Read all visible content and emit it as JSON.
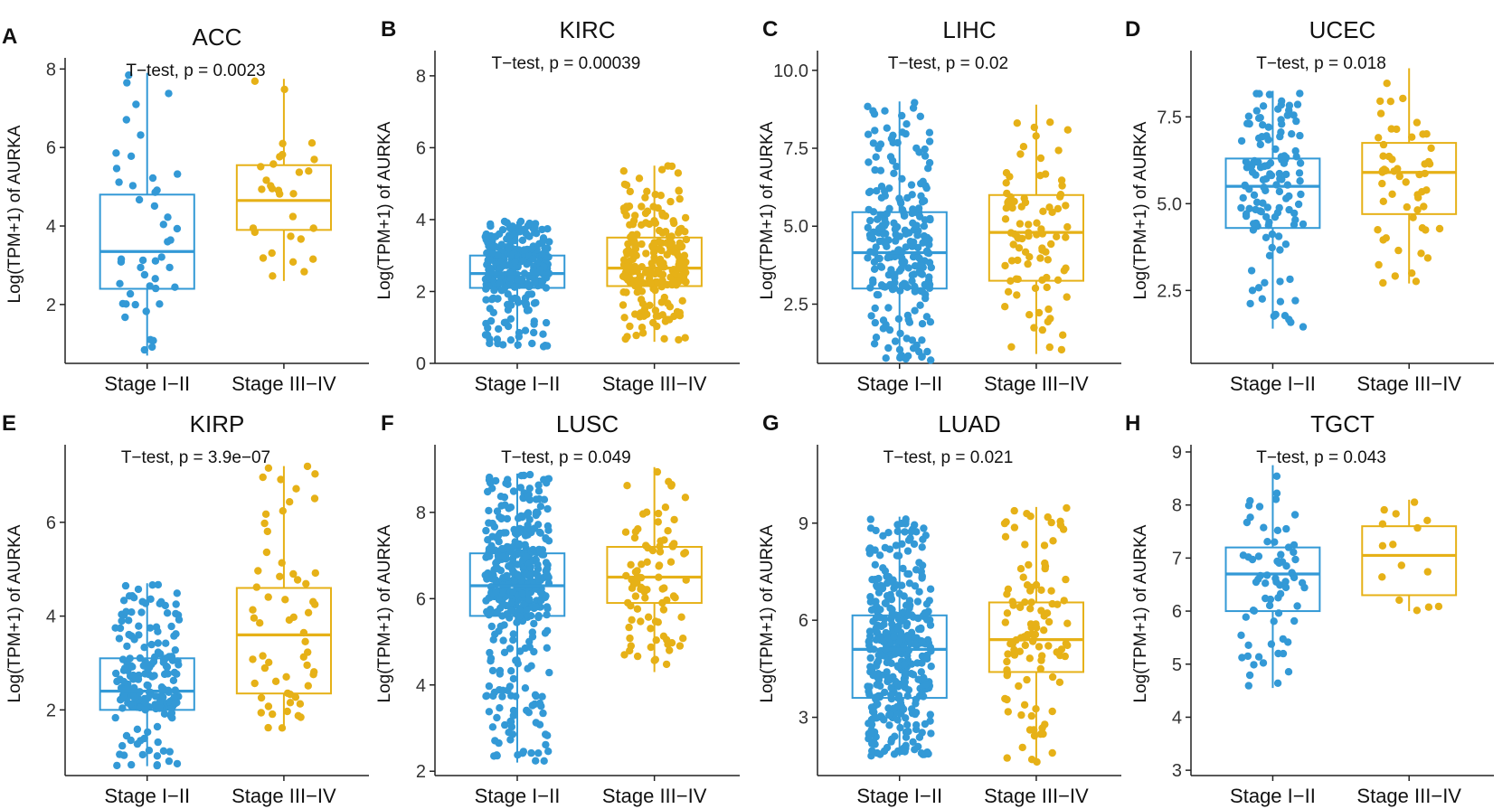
{
  "figure": {
    "colors": {
      "stage_early": "#3399d6",
      "stage_late": "#e6b117",
      "axis": "#222222",
      "text": "#111111"
    },
    "ylabel": "Log(TPM+1) of AURKA",
    "categories": [
      "Stage I−II",
      "Stage III−IV"
    ]
  },
  "chart_data": [
    {
      "type": "box",
      "panel_label": "A",
      "title": "ACC",
      "annotation": "T−test, p = 0.0023",
      "xlabel": "",
      "ylabel": "Log(TPM+1) of AURKA",
      "ylim": [
        0.5,
        8.1
      ],
      "yticks": [
        2,
        4,
        6,
        8
      ],
      "ytick_labels": [
        "2",
        "4",
        "6",
        "8"
      ],
      "categories": [
        "Stage I−II",
        "Stage III−IV"
      ],
      "boxes": [
        {
          "name": "Stage I−II",
          "whisker_low": 0.7,
          "q1": 2.4,
          "median": 3.35,
          "q3": 4.8,
          "whisker_high": 7.9,
          "n_points": 46
        },
        {
          "name": "Stage III−IV",
          "whisker_low": 2.6,
          "q1": 3.9,
          "median": 4.65,
          "q3": 5.55,
          "whisker_high": 7.75,
          "n_points": 30
        }
      ]
    },
    {
      "type": "box",
      "panel_label": "B",
      "title": "KIRC",
      "annotation": "T−test, p = 0.00039",
      "xlabel": "",
      "ylabel": "Log(TPM+1) of AURKA",
      "ylim": [
        0,
        8.5
      ],
      "yticks": [
        0,
        2,
        4,
        6,
        8
      ],
      "ytick_labels": [
        "0",
        "2",
        "4",
        "6",
        "8"
      ],
      "categories": [
        "Stage I−II",
        "Stage III−IV"
      ],
      "boxes": [
        {
          "name": "Stage I−II",
          "whisker_low": 0.4,
          "q1": 2.1,
          "median": 2.5,
          "q3": 3.0,
          "whisker_high": 3.95,
          "n_points": 300
        },
        {
          "name": "Stage III−IV",
          "whisker_low": 0.6,
          "q1": 2.15,
          "median": 2.65,
          "q3": 3.5,
          "whisker_high": 5.5,
          "n_points": 230
        }
      ]
    },
    {
      "type": "box",
      "panel_label": "C",
      "title": "LIHC",
      "annotation": "T−test, p = 0.02",
      "xlabel": "",
      "ylabel": "Log(TPM+1) of AURKA",
      "ylim": [
        0.6,
        10.4
      ],
      "yticks": [
        2.5,
        5.0,
        7.5,
        10.0
      ],
      "ytick_labels": [
        "2.5",
        "5.0",
        "7.5",
        "10.0"
      ],
      "categories": [
        "Stage I−II",
        "Stage III−IV"
      ],
      "boxes": [
        {
          "name": "Stage I−II",
          "whisker_low": 0.7,
          "q1": 3.0,
          "median": 4.15,
          "q3": 5.45,
          "whisker_high": 9.0,
          "n_points": 250
        },
        {
          "name": "Stage III−IV",
          "whisker_low": 0.9,
          "q1": 3.25,
          "median": 4.8,
          "q3": 6.0,
          "whisker_high": 8.9,
          "n_points": 90
        }
      ]
    },
    {
      "type": "box",
      "panel_label": "D",
      "title": "UCEC",
      "annotation": "T−test, p = 0.018",
      "xlabel": "",
      "ylabel": "Log(TPM+1) of AURKA",
      "ylim": [
        0.4,
        9.2
      ],
      "yticks": [
        2.5,
        5.0,
        7.5
      ],
      "ytick_labels": [
        "2.5",
        "5.0",
        "7.5"
      ],
      "categories": [
        "Stage I−II",
        "Stage III−IV"
      ],
      "boxes": [
        {
          "name": "Stage I−II",
          "whisker_low": 1.4,
          "q1": 4.3,
          "median": 5.5,
          "q3": 6.3,
          "whisker_high": 8.25,
          "n_points": 130
        },
        {
          "name": "Stage III−IV",
          "whisker_low": 2.7,
          "q1": 4.7,
          "median": 5.9,
          "q3": 6.75,
          "whisker_high": 8.9,
          "n_points": 55
        }
      ]
    },
    {
      "type": "box",
      "panel_label": "E",
      "title": "KIRP",
      "annotation": "T−test, p = 3.9e−07",
      "xlabel": "",
      "ylabel": "Log(TPM+1) of AURKA",
      "ylim": [
        0.6,
        7.5
      ],
      "yticks": [
        2,
        4,
        6
      ],
      "ytick_labels": [
        "2",
        "4",
        "6"
      ],
      "categories": [
        "Stage I−II",
        "Stage III−IV"
      ],
      "boxes": [
        {
          "name": "Stage I−II",
          "whisker_low": 0.8,
          "q1": 2.0,
          "median": 2.4,
          "q3": 3.1,
          "whisker_high": 4.7,
          "n_points": 200
        },
        {
          "name": "Stage III−IV",
          "whisker_low": 1.6,
          "q1": 2.35,
          "median": 3.6,
          "q3": 4.6,
          "whisker_high": 7.2,
          "n_points": 60
        }
      ]
    },
    {
      "type": "box",
      "panel_label": "F",
      "title": "LUSC",
      "annotation": "T−test, p = 0.049",
      "xlabel": "",
      "ylabel": "Log(TPM+1) of AURKA",
      "ylim": [
        1.9,
        9.4
      ],
      "yticks": [
        2,
        4,
        6,
        8
      ],
      "ytick_labels": [
        "2",
        "4",
        "6",
        "8"
      ],
      "categories": [
        "Stage I−II",
        "Stage III−IV"
      ],
      "boxes": [
        {
          "name": "Stage I−II",
          "whisker_low": 2.2,
          "q1": 5.6,
          "median": 6.3,
          "q3": 7.05,
          "whisker_high": 8.9,
          "n_points": 420
        },
        {
          "name": "Stage III−IV",
          "whisker_low": 4.3,
          "q1": 5.9,
          "median": 6.5,
          "q3": 7.2,
          "whisker_high": 9.05,
          "n_points": 90
        }
      ]
    },
    {
      "type": "box",
      "panel_label": "G",
      "title": "LUAD",
      "annotation": "T−test, p = 0.021",
      "xlabel": "",
      "ylabel": "Log(TPM+1) of AURKA",
      "ylim": [
        1.2,
        11.2
      ],
      "yticks": [
        3,
        6,
        9
      ],
      "ytick_labels": [
        "3",
        "6",
        "9"
      ],
      "categories": [
        "Stage I−II",
        "Stage III−IV"
      ],
      "boxes": [
        {
          "name": "Stage I−II",
          "whisker_low": 1.8,
          "q1": 3.6,
          "median": 5.1,
          "q3": 6.15,
          "whisker_high": 9.2,
          "n_points": 400
        },
        {
          "name": "Stage III−IV",
          "whisker_low": 1.6,
          "q1": 4.4,
          "median": 5.4,
          "q3": 6.55,
          "whisker_high": 9.5,
          "n_points": 110
        }
      ]
    },
    {
      "type": "box",
      "panel_label": "H",
      "title": "TGCT",
      "annotation": "T−test, p = 0.043",
      "xlabel": "",
      "ylabel": "Log(TPM+1) of AURKA",
      "ylim": [
        2.9,
        9.0
      ],
      "yticks": [
        3,
        4,
        5,
        6,
        7,
        8,
        9
      ],
      "ytick_labels": [
        "3",
        "4",
        "5",
        "6",
        "7",
        "8",
        "9"
      ],
      "categories": [
        "Stage I−II",
        "Stage III−IV"
      ],
      "boxes": [
        {
          "name": "Stage I−II",
          "whisker_low": 4.55,
          "q1": 6.0,
          "median": 6.7,
          "q3": 7.2,
          "whisker_high": 8.75,
          "n_points": 70
        },
        {
          "name": "Stage III−IV",
          "whisker_low": 6.0,
          "q1": 6.3,
          "median": 7.05,
          "q3": 7.6,
          "whisker_high": 8.1,
          "n_points": 15
        }
      ]
    }
  ]
}
